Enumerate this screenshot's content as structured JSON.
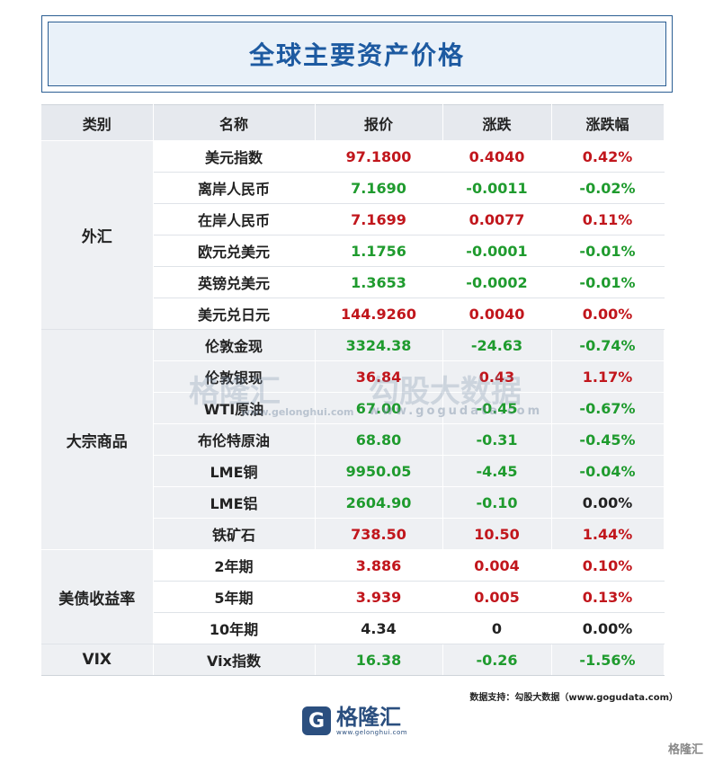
{
  "title": "全球主要资产价格",
  "headers": [
    "类别",
    "名称",
    "报价",
    "涨跌",
    "涨跌幅"
  ],
  "categories": {
    "fx": "外汇",
    "commodities": "大宗商品",
    "treasury": "美债收益率",
    "vix": "VIX"
  },
  "rows": [
    {
      "name": "美元指数",
      "price": "97.1800",
      "change": "0.4040",
      "pct": "0.42%",
      "c": "red"
    },
    {
      "name": "离岸人民币",
      "price": "7.1690",
      "change": "-0.0011",
      "pct": "-0.02%",
      "c": "green"
    },
    {
      "name": "在岸人民币",
      "price": "7.1699",
      "change": "0.0077",
      "pct": "0.11%",
      "c": "red"
    },
    {
      "name": "欧元兑美元",
      "price": "1.1756",
      "change": "-0.0001",
      "pct": "-0.01%",
      "c": "green"
    },
    {
      "name": "英镑兑美元",
      "price": "1.3653",
      "change": "-0.0002",
      "pct": "-0.01%",
      "c": "green"
    },
    {
      "name": "美元兑日元",
      "price": "144.9260",
      "change": "0.0040",
      "pct": "0.00%",
      "c": "red"
    },
    {
      "name": "伦敦金现",
      "price": "3324.38",
      "change": "-24.63",
      "pct": "-0.74%",
      "c": "green"
    },
    {
      "name": "伦敦银现",
      "price": "36.84",
      "change": "0.43",
      "pct": "1.17%",
      "c": "red"
    },
    {
      "name": "WTI原油",
      "price": "67.00",
      "change": "-0.45",
      "pct": "-0.67%",
      "c": "green"
    },
    {
      "name": "布伦特原油",
      "price": "68.80",
      "change": "-0.31",
      "pct": "-0.45%",
      "c": "green"
    },
    {
      "name": "LME铜",
      "price": "9950.05",
      "change": "-4.45",
      "pct": "-0.04%",
      "c": "green"
    },
    {
      "name": "LME铝",
      "price": "2604.90",
      "change": "-0.10",
      "pct": "0.00%",
      "c": "green"
    },
    {
      "name": "铁矿石",
      "price": "738.50",
      "change": "10.50",
      "pct": "1.44%",
      "c": "red"
    },
    {
      "name": "2年期",
      "price": "3.886",
      "change": "0.004",
      "pct": "0.10%",
      "c": "red"
    },
    {
      "name": "5年期",
      "price": "3.939",
      "change": "0.005",
      "pct": "0.13%",
      "c": "red"
    },
    {
      "name": "10年期",
      "price": "4.34",
      "change": "0",
      "pct": "0.00%",
      "c": "black"
    },
    {
      "name": "Vix指数",
      "price": "16.38",
      "change": "-0.26",
      "pct": "-1.56%",
      "c": "green"
    }
  ],
  "source": "数据支持：勾股大数据（www.gogudata.com）",
  "logo": {
    "mark": "G",
    "name": "格隆汇",
    "url": "www.gelonghui.com"
  },
  "watermark": {
    "brand": "格隆汇",
    "brand_url": "www.gelonghui.com",
    "partner": "勾股大数据",
    "partner_url": "www.gogudata.com"
  },
  "corner_mark": "格隆汇",
  "colors": {
    "up": "#c1161c",
    "down": "#1f9b2e",
    "accent": "#1d5aa1"
  }
}
